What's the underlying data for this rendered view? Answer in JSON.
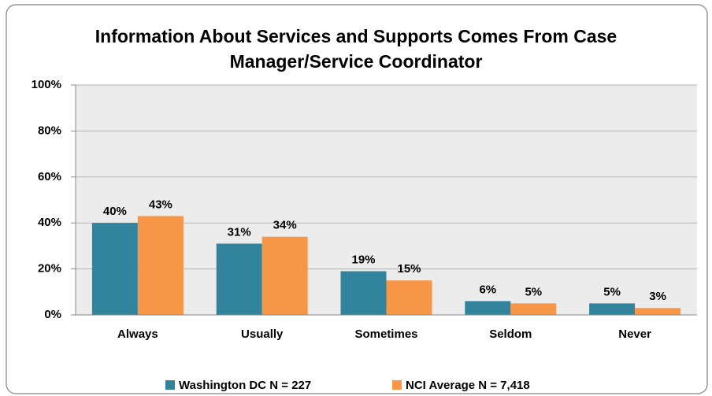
{
  "chart_data": {
    "type": "bar",
    "title": "Information About Services and Supports Comes From Case Manager/Service Coordinator",
    "categories": [
      "Always",
      "Usually",
      "Sometimes",
      "Seldom",
      "Never"
    ],
    "series": [
      {
        "name": "Washington DC N = 227",
        "color": "#31849b",
        "values": [
          40,
          31,
          19,
          6,
          5
        ],
        "value_labels": [
          "40%",
          "31%",
          "19%",
          "6%",
          "5%"
        ]
      },
      {
        "name": "NCI Average N = 7,418",
        "color": "#f79646",
        "values": [
          43,
          34,
          15,
          5,
          3
        ],
        "value_labels": [
          "43%",
          "34%",
          "15%",
          "5%",
          "3%"
        ]
      }
    ],
    "ylim": [
      0,
      100
    ],
    "yticks": [
      {
        "value": 0,
        "label": "0%"
      },
      {
        "value": 20,
        "label": "20%"
      },
      {
        "value": 40,
        "label": "40%"
      },
      {
        "value": 60,
        "label": "60%"
      },
      {
        "value": 80,
        "label": "80%"
      },
      {
        "value": 100,
        "label": "100%"
      }
    ],
    "grid": true,
    "legend": "bottom"
  }
}
